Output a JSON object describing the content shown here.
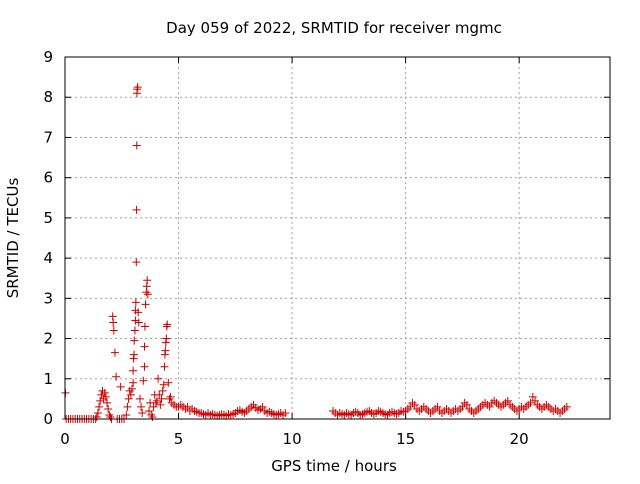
{
  "chart_data": {
    "type": "scatter",
    "title": "Day 059 of 2022, SRMTID for receiver mgmc",
    "xlabel": "GPS time / hours",
    "ylabel": "SRMTID / TECUs",
    "xlim": [
      0,
      24
    ],
    "ylim": [
      0,
      9
    ],
    "xticks": [
      0,
      5,
      10,
      15,
      20
    ],
    "xtick_labels": [
      "0",
      "5",
      "10",
      "15",
      "20"
    ],
    "yticks": [
      0,
      1,
      2,
      3,
      4,
      5,
      6,
      7,
      8,
      9
    ],
    "ytick_labels": [
      "0",
      "1",
      "2",
      "3",
      "4",
      "5",
      "6",
      "7",
      "8",
      "9"
    ],
    "grid": true,
    "marker": "+",
    "series": [
      {
        "color": "#cc0000",
        "points": [
          [
            0.02,
            0.65
          ],
          [
            0.05,
            0.0
          ],
          [
            0.15,
            0.0
          ],
          [
            0.25,
            0.0
          ],
          [
            0.35,
            0.0
          ],
          [
            0.45,
            0.0
          ],
          [
            0.55,
            0.0
          ],
          [
            0.65,
            0.0
          ],
          [
            0.75,
            0.0
          ],
          [
            0.85,
            0.0
          ],
          [
            0.95,
            0.0
          ],
          [
            1.05,
            0.0
          ],
          [
            1.15,
            0.0
          ],
          [
            1.25,
            0.0
          ],
          [
            1.35,
            0.0
          ],
          [
            1.4,
            0.05
          ],
          [
            1.45,
            0.15
          ],
          [
            1.5,
            0.3
          ],
          [
            1.55,
            0.45
          ],
          [
            1.6,
            0.6
          ],
          [
            1.65,
            0.7
          ],
          [
            1.7,
            0.5
          ],
          [
            1.75,
            0.65
          ],
          [
            1.8,
            0.55
          ],
          [
            1.85,
            0.4
          ],
          [
            1.9,
            0.25
          ],
          [
            1.95,
            0.1
          ],
          [
            2.0,
            0.05
          ],
          [
            2.05,
            0.0
          ],
          [
            2.1,
            2.55
          ],
          [
            2.12,
            2.4
          ],
          [
            2.15,
            2.2
          ],
          [
            2.2,
            1.65
          ],
          [
            2.25,
            1.05
          ],
          [
            2.3,
            0.0
          ],
          [
            2.4,
            0.0
          ],
          [
            2.45,
            0.8
          ],
          [
            2.5,
            0.0
          ],
          [
            2.6,
            0.0
          ],
          [
            2.7,
            0.1
          ],
          [
            2.75,
            0.3
          ],
          [
            2.8,
            0.5
          ],
          [
            2.85,
            0.7
          ],
          [
            2.9,
            0.6
          ],
          [
            2.95,
            0.75
          ],
          [
            3.0,
            0.9
          ],
          [
            3.0,
            1.2
          ],
          [
            3.02,
            1.5
          ],
          [
            3.04,
            1.6
          ],
          [
            3.05,
            1.95
          ],
          [
            3.08,
            2.2
          ],
          [
            3.1,
            2.45
          ],
          [
            3.1,
            2.7
          ],
          [
            3.12,
            2.9
          ],
          [
            3.14,
            3.9
          ],
          [
            3.15,
            5.2
          ],
          [
            3.16,
            6.8
          ],
          [
            3.17,
            8.1
          ],
          [
            3.18,
            8.2
          ],
          [
            3.2,
            8.25
          ],
          [
            3.22,
            2.65
          ],
          [
            3.25,
            2.4
          ],
          [
            3.3,
            0.5
          ],
          [
            3.35,
            0.3
          ],
          [
            3.4,
            0.15
          ],
          [
            3.45,
            0.95
          ],
          [
            3.5,
            1.3
          ],
          [
            3.5,
            1.8
          ],
          [
            3.52,
            2.3
          ],
          [
            3.55,
            2.85
          ],
          [
            3.58,
            3.15
          ],
          [
            3.6,
            3.3
          ],
          [
            3.62,
            3.45
          ],
          [
            3.65,
            3.1
          ],
          [
            3.7,
            0.2
          ],
          [
            3.75,
            0.4
          ],
          [
            3.8,
            0.1
          ],
          [
            3.85,
            0.05
          ],
          [
            3.9,
            0.3
          ],
          [
            3.95,
            0.6
          ],
          [
            4.0,
            0.4
          ],
          [
            4.05,
            0.45
          ],
          [
            4.1,
            1.0
          ],
          [
            4.15,
            0.6
          ],
          [
            4.2,
            0.35
          ],
          [
            4.25,
            0.5
          ],
          [
            4.3,
            0.7
          ],
          [
            4.35,
            0.85
          ],
          [
            4.38,
            1.3
          ],
          [
            4.4,
            1.6
          ],
          [
            4.42,
            1.7
          ],
          [
            4.44,
            1.9
          ],
          [
            4.46,
            2.0
          ],
          [
            4.48,
            2.3
          ],
          [
            4.5,
            2.35
          ],
          [
            4.55,
            0.9
          ],
          [
            4.6,
            0.5
          ],
          [
            4.65,
            0.55
          ],
          [
            4.7,
            0.4
          ],
          [
            4.8,
            0.35
          ],
          [
            4.9,
            0.3
          ],
          [
            5.0,
            0.3
          ],
          [
            5.1,
            0.35
          ],
          [
            5.2,
            0.3
          ],
          [
            5.3,
            0.25
          ],
          [
            5.4,
            0.3
          ],
          [
            5.5,
            0.2
          ],
          [
            5.6,
            0.25
          ],
          [
            5.7,
            0.2
          ],
          [
            5.8,
            0.18
          ],
          [
            5.9,
            0.15
          ],
          [
            6.0,
            0.15
          ],
          [
            6.1,
            0.12
          ],
          [
            6.2,
            0.1
          ],
          [
            6.3,
            0.15
          ],
          [
            6.4,
            0.1
          ],
          [
            6.5,
            0.12
          ],
          [
            6.6,
            0.1
          ],
          [
            6.7,
            0.08
          ],
          [
            6.8,
            0.1
          ],
          [
            6.9,
            0.12
          ],
          [
            7.0,
            0.1
          ],
          [
            7.1,
            0.08
          ],
          [
            7.2,
            0.12
          ],
          [
            7.3,
            0.1
          ],
          [
            7.4,
            0.12
          ],
          [
            7.5,
            0.15
          ],
          [
            7.6,
            0.2
          ],
          [
            7.7,
            0.22
          ],
          [
            7.8,
            0.18
          ],
          [
            7.9,
            0.15
          ],
          [
            8.0,
            0.2
          ],
          [
            8.1,
            0.25
          ],
          [
            8.2,
            0.3
          ],
          [
            8.3,
            0.35
          ],
          [
            8.4,
            0.28
          ],
          [
            8.5,
            0.22
          ],
          [
            8.6,
            0.25
          ],
          [
            8.7,
            0.3
          ],
          [
            8.8,
            0.2
          ],
          [
            8.9,
            0.15
          ],
          [
            9.0,
            0.18
          ],
          [
            9.1,
            0.15
          ],
          [
            9.2,
            0.12
          ],
          [
            9.3,
            0.1
          ],
          [
            9.4,
            0.12
          ],
          [
            9.5,
            0.15
          ],
          [
            9.6,
            0.1
          ],
          [
            9.7,
            0.15
          ],
          [
            11.8,
            0.2
          ],
          [
            11.9,
            0.15
          ],
          [
            12.0,
            0.1
          ],
          [
            12.1,
            0.15
          ],
          [
            12.2,
            0.12
          ],
          [
            12.3,
            0.1
          ],
          [
            12.4,
            0.15
          ],
          [
            12.5,
            0.12
          ],
          [
            12.6,
            0.1
          ],
          [
            12.7,
            0.15
          ],
          [
            12.8,
            0.18
          ],
          [
            12.9,
            0.15
          ],
          [
            13.0,
            0.1
          ],
          [
            13.1,
            0.12
          ],
          [
            13.2,
            0.15
          ],
          [
            13.3,
            0.18
          ],
          [
            13.4,
            0.2
          ],
          [
            13.5,
            0.15
          ],
          [
            13.6,
            0.12
          ],
          [
            13.7,
            0.15
          ],
          [
            13.8,
            0.2
          ],
          [
            13.9,
            0.18
          ],
          [
            14.0,
            0.15
          ],
          [
            14.1,
            0.12
          ],
          [
            14.2,
            0.1
          ],
          [
            14.3,
            0.15
          ],
          [
            14.4,
            0.18
          ],
          [
            14.5,
            0.15
          ],
          [
            14.6,
            0.12
          ],
          [
            14.7,
            0.15
          ],
          [
            14.8,
            0.2
          ],
          [
            14.9,
            0.18
          ],
          [
            15.0,
            0.2
          ],
          [
            15.1,
            0.25
          ],
          [
            15.2,
            0.3
          ],
          [
            15.3,
            0.4
          ],
          [
            15.4,
            0.35
          ],
          [
            15.5,
            0.25
          ],
          [
            15.6,
            0.2
          ],
          [
            15.7,
            0.25
          ],
          [
            15.8,
            0.3
          ],
          [
            15.9,
            0.25
          ],
          [
            16.0,
            0.2
          ],
          [
            16.1,
            0.15
          ],
          [
            16.2,
            0.2
          ],
          [
            16.3,
            0.25
          ],
          [
            16.4,
            0.3
          ],
          [
            16.5,
            0.2
          ],
          [
            16.6,
            0.15
          ],
          [
            16.7,
            0.2
          ],
          [
            16.8,
            0.25
          ],
          [
            16.9,
            0.2
          ],
          [
            17.0,
            0.15
          ],
          [
            17.1,
            0.2
          ],
          [
            17.2,
            0.25
          ],
          [
            17.3,
            0.2
          ],
          [
            17.4,
            0.25
          ],
          [
            17.5,
            0.3
          ],
          [
            17.6,
            0.4
          ],
          [
            17.7,
            0.35
          ],
          [
            17.8,
            0.25
          ],
          [
            17.9,
            0.2
          ],
          [
            18.0,
            0.15
          ],
          [
            18.1,
            0.2
          ],
          [
            18.2,
            0.25
          ],
          [
            18.3,
            0.3
          ],
          [
            18.4,
            0.35
          ],
          [
            18.5,
            0.4
          ],
          [
            18.6,
            0.35
          ],
          [
            18.7,
            0.3
          ],
          [
            18.8,
            0.4
          ],
          [
            18.9,
            0.45
          ],
          [
            19.0,
            0.4
          ],
          [
            19.1,
            0.35
          ],
          [
            19.2,
            0.3
          ],
          [
            19.3,
            0.35
          ],
          [
            19.4,
            0.4
          ],
          [
            19.5,
            0.45
          ],
          [
            19.6,
            0.35
          ],
          [
            19.7,
            0.3
          ],
          [
            19.8,
            0.25
          ],
          [
            19.9,
            0.2
          ],
          [
            20.0,
            0.25
          ],
          [
            20.1,
            0.3
          ],
          [
            20.2,
            0.25
          ],
          [
            20.3,
            0.3
          ],
          [
            20.4,
            0.35
          ],
          [
            20.5,
            0.4
          ],
          [
            20.6,
            0.55
          ],
          [
            20.7,
            0.45
          ],
          [
            20.8,
            0.35
          ],
          [
            20.9,
            0.3
          ],
          [
            21.0,
            0.25
          ],
          [
            21.1,
            0.3
          ],
          [
            21.2,
            0.35
          ],
          [
            21.3,
            0.3
          ],
          [
            21.4,
            0.25
          ],
          [
            21.5,
            0.2
          ],
          [
            21.6,
            0.25
          ],
          [
            21.7,
            0.2
          ],
          [
            21.8,
            0.15
          ],
          [
            21.9,
            0.2
          ],
          [
            22.0,
            0.25
          ],
          [
            22.1,
            0.3
          ]
        ]
      }
    ]
  }
}
